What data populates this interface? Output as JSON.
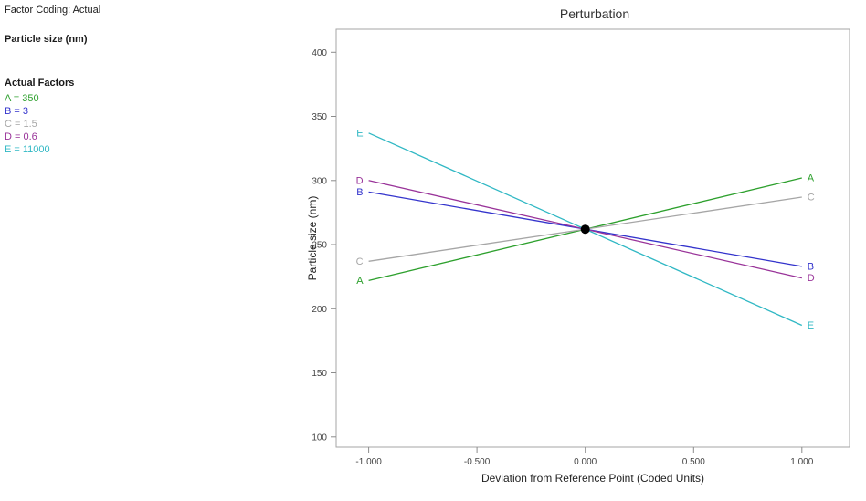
{
  "info": {
    "factor_coding": "Factor Coding: Actual",
    "response": "Particle size (nm)",
    "factors_heading": "Actual Factors",
    "factors": [
      {
        "name": "A",
        "label": "A = 350",
        "color": "#2da02d"
      },
      {
        "name": "B",
        "label": "B = 3",
        "color": "#3333cc"
      },
      {
        "name": "C",
        "label": "C = 1.5",
        "color": "#a6a6a6"
      },
      {
        "name": "D",
        "label": "D = 0.6",
        "color": "#993399"
      },
      {
        "name": "E",
        "label": "E = 11000",
        "color": "#30b8c4"
      }
    ]
  },
  "chart_data": {
    "type": "line",
    "title": "Perturbation",
    "xlabel": "Deviation from Reference Point (Coded Units)",
    "ylabel": "Particle size (nm)",
    "xlim": [
      -1.15,
      1.22
    ],
    "ylim": [
      92,
      418
    ],
    "x_ticks": [
      -1.0,
      -0.5,
      0.0,
      0.5,
      1.0
    ],
    "x_tick_labels": [
      "-1.000",
      "-0.500",
      "0.000",
      "0.500",
      "1.000"
    ],
    "y_ticks": [
      100,
      150,
      200,
      250,
      300,
      350,
      400
    ],
    "grid": false,
    "legend": "labels-at-line-ends",
    "series": [
      {
        "name": "A",
        "color": "#2da02d",
        "x": [
          -1,
          1
        ],
        "values": [
          222,
          302
        ]
      },
      {
        "name": "B",
        "color": "#3333cc",
        "x": [
          -1,
          1
        ],
        "values": [
          291,
          233
        ]
      },
      {
        "name": "C",
        "color": "#a6a6a6",
        "x": [
          -1,
          1
        ],
        "values": [
          237,
          287
        ]
      },
      {
        "name": "D",
        "color": "#993399",
        "x": [
          -1,
          1
        ],
        "values": [
          300,
          224
        ]
      },
      {
        "name": "E",
        "color": "#30b8c4",
        "x": [
          -1,
          1
        ],
        "values": [
          337,
          187
        ]
      }
    ],
    "reference_point": {
      "x": 0,
      "y": 262,
      "color": "#000000"
    }
  }
}
